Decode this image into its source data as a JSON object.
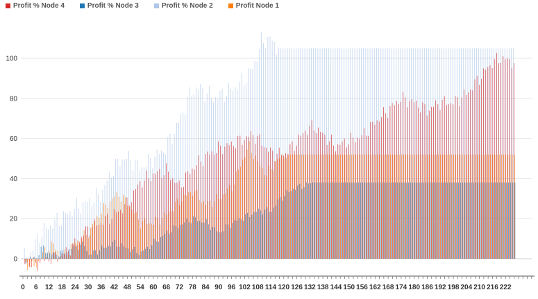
{
  "legend": [
    {
      "label": "Profit % Node 4",
      "color": "#d62728"
    },
    {
      "label": "Profit % Node 3",
      "color": "#1f77b4"
    },
    {
      "label": "Profit % Node 2",
      "color": "#aec7e8"
    },
    {
      "label": "Profit Node 1",
      "color": "#ff7f0e"
    }
  ],
  "chart_data": {
    "type": "bar",
    "title": "",
    "xlabel": "",
    "ylabel": "",
    "x_range": [
      0,
      234
    ],
    "ylim": [
      -3,
      116
    ],
    "x_ticks": [
      0,
      6,
      12,
      18,
      24,
      30,
      36,
      42,
      48,
      54,
      60,
      66,
      72,
      78,
      84,
      90,
      96,
      102,
      108,
      114,
      120,
      126,
      132,
      138,
      144,
      150,
      156,
      162,
      168,
      174,
      180,
      186,
      192,
      198,
      204,
      210,
      216,
      222
    ],
    "y_ticks": [
      0,
      20,
      40,
      60,
      80,
      100
    ],
    "grid": "horizontal",
    "legend_position": "top-left",
    "series": [
      {
        "name": "Profit % Node 2",
        "color": "#aec7e8",
        "knots": [
          [
            0,
            0
          ],
          [
            4,
            3
          ],
          [
            8,
            12
          ],
          [
            12,
            16
          ],
          [
            18,
            20
          ],
          [
            24,
            25
          ],
          [
            30,
            28
          ],
          [
            36,
            32
          ],
          [
            42,
            45
          ],
          [
            46,
            50
          ],
          [
            50,
            50
          ],
          [
            54,
            45
          ],
          [
            60,
            50
          ],
          [
            66,
            55
          ],
          [
            72,
            68
          ],
          [
            78,
            84
          ],
          [
            82,
            85
          ],
          [
            88,
            80
          ],
          [
            94,
            83
          ],
          [
            100,
            87
          ],
          [
            106,
            95
          ],
          [
            110,
            108
          ],
          [
            114,
            110
          ],
          [
            117,
            105
          ],
          [
            226,
            105
          ]
        ],
        "wiggle": 5,
        "stable_from": 118
      },
      {
        "name": "Profit % Node 4",
        "color": "#d62728",
        "knots": [
          [
            0,
            -2
          ],
          [
            6,
            -3
          ],
          [
            12,
            0
          ],
          [
            18,
            2
          ],
          [
            24,
            7
          ],
          [
            30,
            15
          ],
          [
            36,
            18
          ],
          [
            42,
            22
          ],
          [
            48,
            27
          ],
          [
            54,
            38
          ],
          [
            60,
            42
          ],
          [
            66,
            44
          ],
          [
            72,
            36
          ],
          [
            78,
            45
          ],
          [
            84,
            51
          ],
          [
            90,
            55
          ],
          [
            96,
            57
          ],
          [
            102,
            60
          ],
          [
            106,
            62
          ],
          [
            110,
            58
          ],
          [
            114,
            53
          ],
          [
            120,
            52
          ],
          [
            126,
            58
          ],
          [
            130,
            64
          ],
          [
            134,
            66
          ],
          [
            138,
            62
          ],
          [
            144,
            56
          ],
          [
            150,
            59
          ],
          [
            156,
            61
          ],
          [
            162,
            68
          ],
          [
            168,
            74
          ],
          [
            174,
            80
          ],
          [
            180,
            78
          ],
          [
            186,
            74
          ],
          [
            192,
            78
          ],
          [
            198,
            78
          ],
          [
            204,
            82
          ],
          [
            210,
            90
          ],
          [
            216,
            98
          ],
          [
            220,
            100
          ],
          [
            226,
            98
          ]
        ],
        "wiggle": 4
      },
      {
        "name": "Profit Node 1",
        "color": "#ff7f0e",
        "knots": [
          [
            0,
            -2
          ],
          [
            4,
            -4
          ],
          [
            6,
            -3
          ],
          [
            10,
            4
          ],
          [
            14,
            7
          ],
          [
            18,
            1
          ],
          [
            24,
            8
          ],
          [
            30,
            13
          ],
          [
            36,
            24
          ],
          [
            42,
            31
          ],
          [
            44,
            32
          ],
          [
            48,
            28
          ],
          [
            54,
            18
          ],
          [
            60,
            18
          ],
          [
            66,
            22
          ],
          [
            72,
            29
          ],
          [
            78,
            34
          ],
          [
            84,
            27
          ],
          [
            90,
            30
          ],
          [
            96,
            36
          ],
          [
            102,
            52
          ],
          [
            104,
            56
          ],
          [
            108,
            48
          ],
          [
            112,
            42
          ],
          [
            116,
            48
          ],
          [
            120,
            52
          ],
          [
            226,
            52
          ]
        ],
        "wiggle": 3,
        "stable_from": 122
      },
      {
        "name": "Profit % Node 3",
        "color": "#1f77b4",
        "knots": [
          [
            0,
            -1
          ],
          [
            6,
            1
          ],
          [
            9,
            6
          ],
          [
            12,
            2
          ],
          [
            18,
            3
          ],
          [
            24,
            6
          ],
          [
            28,
            7
          ],
          [
            30,
            2
          ],
          [
            36,
            5
          ],
          [
            42,
            8
          ],
          [
            48,
            5
          ],
          [
            54,
            3
          ],
          [
            60,
            8
          ],
          [
            66,
            13
          ],
          [
            72,
            17
          ],
          [
            78,
            20
          ],
          [
            84,
            18
          ],
          [
            90,
            13
          ],
          [
            96,
            18
          ],
          [
            102,
            21
          ],
          [
            108,
            24
          ],
          [
            114,
            24
          ],
          [
            118,
            30
          ],
          [
            124,
            35
          ],
          [
            130,
            37
          ],
          [
            133,
            38
          ],
          [
            226,
            38
          ]
        ],
        "wiggle": 2,
        "stable_from": 134
      }
    ]
  }
}
